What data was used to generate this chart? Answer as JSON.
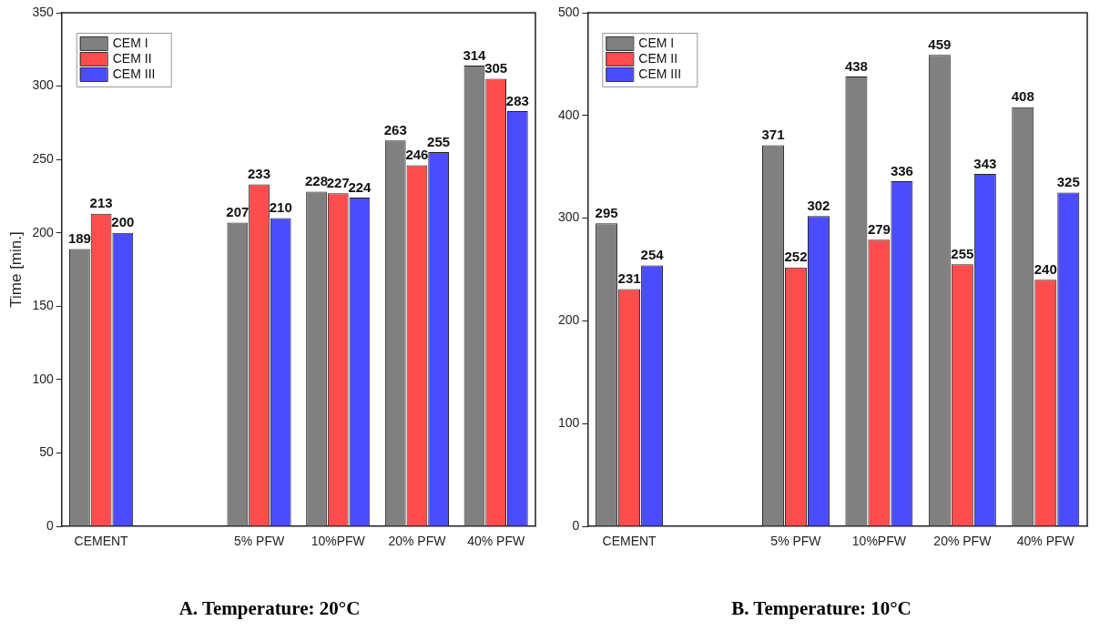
{
  "chart_data": [
    {
      "type": "bar",
      "title": "A. Temperature: 20°C",
      "ylabel": "Time [min.]",
      "categories": [
        "CEMENT",
        null,
        "5% PFW",
        "10%PFW",
        "20% PFW",
        "40% PFW"
      ],
      "series": [
        {
          "name": "CEM I",
          "color": "#808080",
          "values": [
            189,
            null,
            207,
            228,
            263,
            314
          ]
        },
        {
          "name": "CEM II",
          "color": "#ff4c4c",
          "values": [
            213,
            null,
            233,
            227,
            246,
            305
          ]
        },
        {
          "name": "CEM III",
          "color": "#4c4cff",
          "values": [
            200,
            null,
            210,
            224,
            255,
            283
          ]
        }
      ],
      "ylim": [
        0,
        350
      ],
      "yticks": [
        0,
        50,
        100,
        150,
        200,
        250,
        300,
        350
      ],
      "grid": false,
      "legend": "top left",
      "data_labels": true
    },
    {
      "type": "bar",
      "title": "B. Temperature: 10°C",
      "categories": [
        "CEMENT",
        null,
        "5% PFW",
        "10%PFW",
        "20% PFW",
        "40% PFW"
      ],
      "series": [
        {
          "name": "CEM I",
          "color": "#808080",
          "values": [
            295,
            null,
            371,
            438,
            459,
            408
          ]
        },
        {
          "name": "CEM II",
          "color": "#ff4c4c",
          "values": [
            231,
            null,
            252,
            279,
            255,
            240
          ]
        },
        {
          "name": "CEM III",
          "color": "#4c4cff",
          "values": [
            254,
            null,
            302,
            336,
            343,
            325
          ]
        }
      ],
      "ylim": [
        0,
        500
      ],
      "yticks": [
        0,
        100,
        200,
        300,
        400,
        500
      ],
      "grid": false,
      "legend": "top left",
      "data_labels": true
    }
  ]
}
